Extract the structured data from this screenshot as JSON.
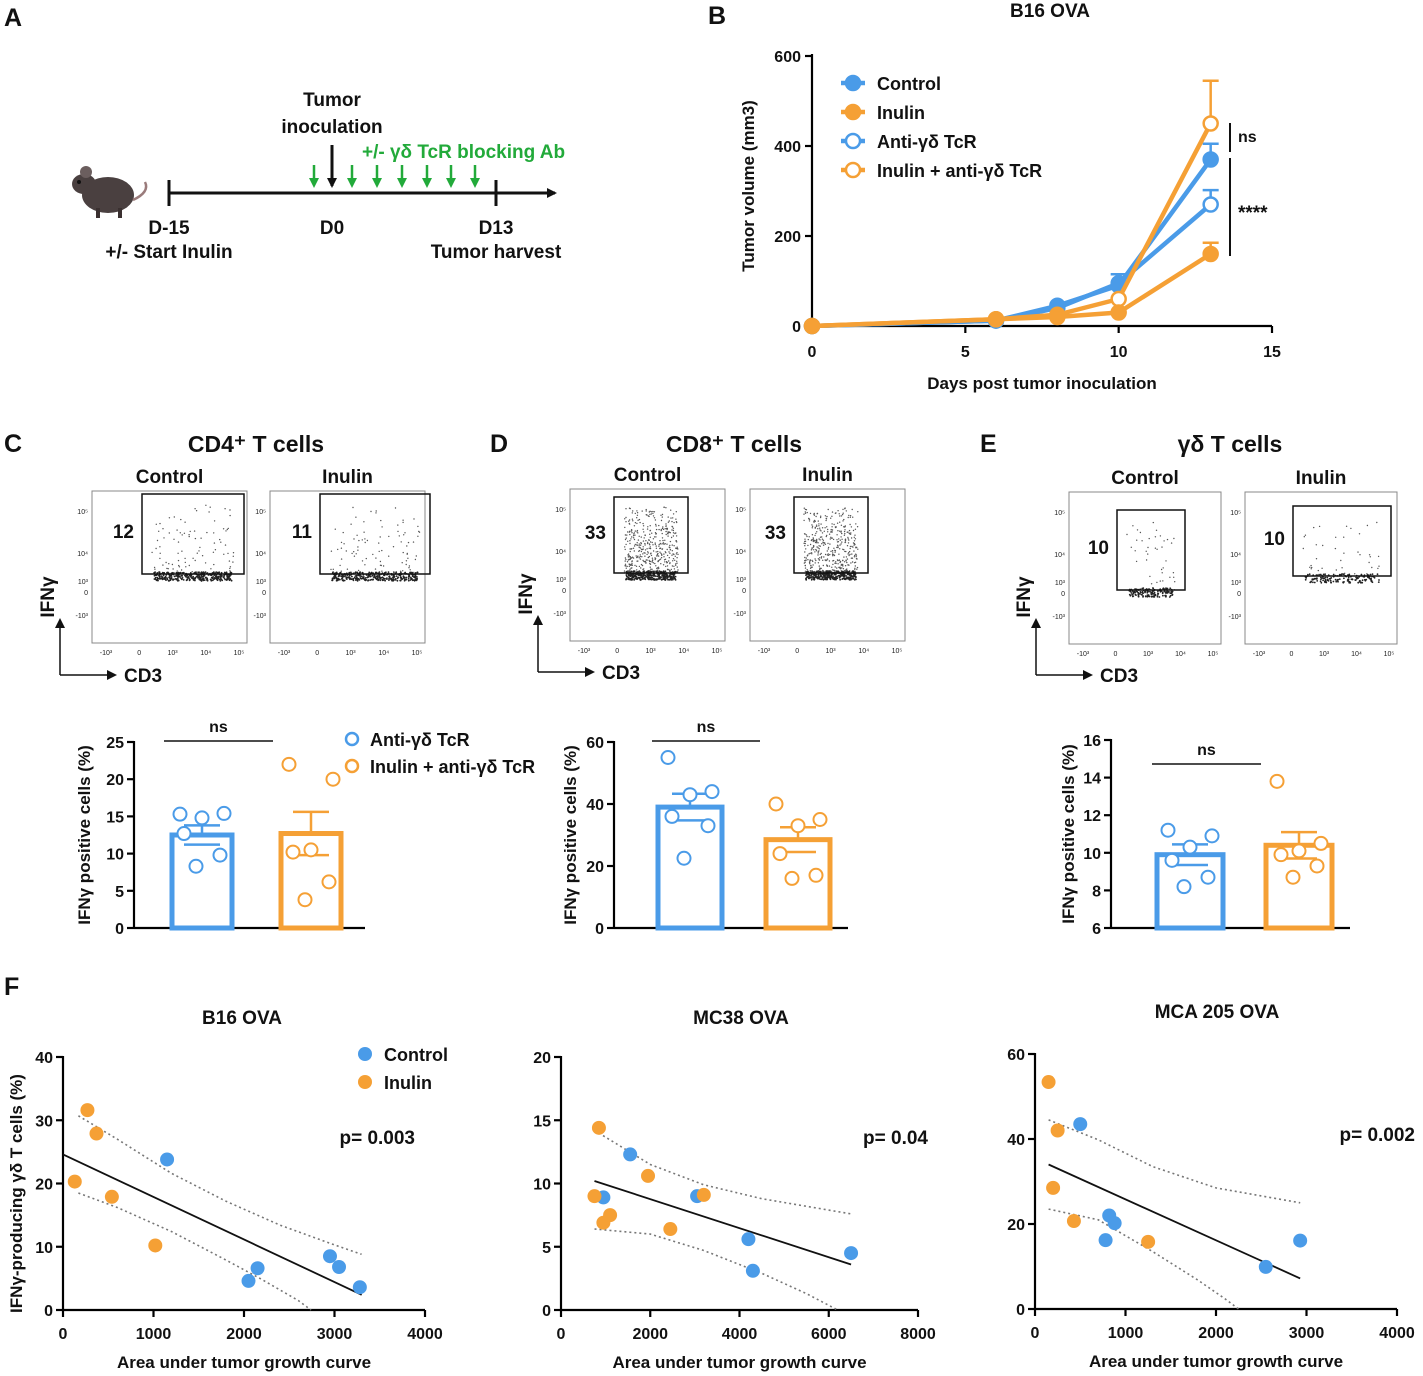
{
  "colors": {
    "control": "#4a9be8",
    "inulin": "#f5a035",
    "green": "#22aa3a",
    "black": "#111111"
  },
  "panel_labels": [
    "A",
    "B",
    "C",
    "D",
    "E",
    "F"
  ],
  "timeline": {
    "inoculation": [
      "Tumor",
      "inoculation"
    ],
    "blocking": "+/- γδ TcR blocking Ab",
    "d15": "D-15",
    "start_inulin": "+/- Start Inulin",
    "d0": "D0",
    "d13": "D13",
    "harvest": "Tumor harvest",
    "mouse_icon": "mouse-icon"
  },
  "chart_data": [
    {
      "id": "B",
      "type": "line",
      "title": "B16 OVA",
      "xlabel": "Days post tumor inoculation",
      "ylabel": "Tumor volume (mm3)",
      "xlim": [
        0,
        15
      ],
      "ylim": [
        0,
        600
      ],
      "xticks": [
        "0",
        "5",
        "10",
        "15"
      ],
      "yticks": [
        "0",
        "200",
        "400",
        "600"
      ],
      "x": [
        0,
        6,
        8,
        10,
        13
      ],
      "series": [
        {
          "name": "Control",
          "values": [
            0,
            12,
            45,
            90,
            370
          ],
          "err": [
            0,
            0,
            0,
            0,
            35
          ],
          "filled": true,
          "color": "#4a9be8"
        },
        {
          "name": "Inulin",
          "values": [
            0,
            15,
            20,
            30,
            160
          ],
          "err": [
            0,
            0,
            0,
            0,
            25
          ],
          "filled": true,
          "color": "#f5a035"
        },
        {
          "name": "Anti-γδ TcR",
          "values": [
            0,
            12,
            40,
            95,
            270
          ],
          "err": [
            0,
            0,
            0,
            20,
            32
          ],
          "filled": false,
          "color": "#4a9be8"
        },
        {
          "name": "Inulin + anti-γδ TcR",
          "values": [
            0,
            15,
            25,
            60,
            450
          ],
          "err": [
            0,
            0,
            0,
            0,
            95
          ],
          "filled": false,
          "color": "#f5a035"
        }
      ],
      "annotations": [
        "ns",
        "****"
      ]
    },
    {
      "id": "C-bar",
      "type": "bar",
      "title": "CD4⁺ T cells",
      "ylabel": "IFNγ positive cells (%)",
      "ylim": [
        0,
        25
      ],
      "yticks": [
        "0",
        "5",
        "10",
        "15",
        "20",
        "25"
      ],
      "categories": [
        "Anti-γδ TcR",
        "Inulin + anti-γδ TcR"
      ],
      "values": [
        12.5,
        12.7
      ],
      "err": [
        1.3,
        2.9
      ],
      "points": [
        [
          15.3,
          15.4,
          14.8,
          12.7,
          9.8,
          8.3
        ],
        [
          22,
          20,
          10.5,
          10.2,
          6.2,
          3.8
        ]
      ],
      "annotation": "ns",
      "legend": [
        "Anti-γδ TcR",
        "Inulin + anti-γδ TcR"
      ]
    },
    {
      "id": "D-bar",
      "type": "bar",
      "title": "CD8⁺ T cells",
      "ylabel": "IFNγ positive cells (%)",
      "ylim": [
        0,
        60
      ],
      "yticks": [
        "0",
        "20",
        "40",
        "60"
      ],
      "categories": [
        "Anti-γδ TcR",
        "Inulin + anti-γδ TcR"
      ],
      "values": [
        39,
        28.5
      ],
      "err": [
        4.3,
        4
      ],
      "points": [
        [
          55,
          44,
          43,
          36,
          33,
          22.5
        ],
        [
          40,
          35,
          33,
          24,
          17,
          16
        ]
      ],
      "annotation": "ns"
    },
    {
      "id": "E-bar",
      "type": "bar",
      "title": "γδ T cells",
      "ylabel": "IFNγ positive cells (%)",
      "ylim": [
        6,
        16
      ],
      "yticks": [
        "6",
        "8",
        "10",
        "12",
        "14",
        "16"
      ],
      "categories": [
        "Anti-γδ TcR",
        "Inulin + anti-γδ TcR"
      ],
      "values": [
        9.9,
        10.4
      ],
      "err": [
        0.55,
        0.7
      ],
      "points": [
        [
          11.2,
          10.9,
          10.3,
          9.6,
          8.7,
          8.2
        ],
        [
          13.8,
          10.5,
          10.1,
          9.9,
          9.3,
          8.7
        ]
      ],
      "annotation": "ns"
    },
    {
      "id": "F1",
      "type": "scatter",
      "title": "B16 OVA",
      "xlabel": "Area under tumor growth curve",
      "ylabel": "IFNγ-producing γδ T cells (%)",
      "xlim": [
        0,
        4000
      ],
      "ylim": [
        0,
        40
      ],
      "xticks": [
        "0",
        "1000",
        "2000",
        "3000",
        "4000"
      ],
      "yticks": [
        "0",
        "10",
        "20",
        "30",
        "40"
      ],
      "series": [
        {
          "name": "Control",
          "x": [
            1150,
            2050,
            2150,
            2950,
            3050,
            3280
          ],
          "y": [
            23.8,
            4.6,
            6.6,
            8.5,
            6.8,
            3.6
          ]
        },
        {
          "name": "Inulin",
          "x": [
            130,
            270,
            370,
            540,
            1020
          ],
          "y": [
            20.3,
            31.6,
            27.9,
            17.9,
            10.2
          ]
        }
      ],
      "fit": {
        "x": [
          0,
          3300
        ],
        "y": [
          24.6,
          2.4
        ]
      },
      "ci_upper": {
        "x": [
          170,
          600,
          1200,
          1800,
          2400,
          3000,
          3300
        ],
        "y": [
          30.7,
          27,
          21.6,
          17.2,
          13.4,
          10.3,
          8.8
        ]
      },
      "ci_lower": {
        "x": [
          170,
          600,
          1200,
          1800,
          2200,
          2600,
          2740
        ],
        "y": [
          18.5,
          16.2,
          12.4,
          7.9,
          4.8,
          1.5,
          0
        ]
      },
      "p": "p= 0.003",
      "legend": [
        "Control",
        "Inulin"
      ]
    },
    {
      "id": "F2",
      "type": "scatter",
      "title": "MC38 OVA",
      "xlabel": "Area under tumor growth curve",
      "xlim": [
        0,
        8000
      ],
      "ylim": [
        0,
        20
      ],
      "xticks": [
        "0",
        "2000",
        "4000",
        "6000",
        "8000"
      ],
      "yticks": [
        "0",
        "5",
        "10",
        "15",
        "20"
      ],
      "series": [
        {
          "name": "Control",
          "x": [
            950,
            1550,
            3050,
            4200,
            4300,
            6500
          ],
          "y": [
            8.9,
            12.3,
            9.0,
            5.6,
            3.1,
            4.5
          ]
        },
        {
          "name": "Inulin",
          "x": [
            750,
            850,
            950,
            1100,
            1950,
            2450,
            3200
          ],
          "y": [
            9.0,
            14.4,
            6.9,
            7.5,
            10.6,
            6.4,
            9.1
          ]
        }
      ],
      "fit": {
        "x": [
          750,
          6500
        ],
        "y": [
          10.2,
          3.6
        ]
      },
      "ci_upper": {
        "x": [
          750,
          2000,
          3200,
          4500,
          6500
        ],
        "y": [
          14.2,
          11.5,
          9.9,
          8.8,
          7.6
        ]
      },
      "ci_lower": {
        "x": [
          750,
          2000,
          3200,
          4500,
          5500,
          6200
        ],
        "y": [
          6.4,
          6.0,
          4.7,
          2.9,
          1.3,
          0
        ]
      },
      "p": "p= 0.04"
    },
    {
      "id": "F3",
      "type": "scatter",
      "title": "MCA 205 OVA",
      "xlabel": "Area under tumor growth curve",
      "xlim": [
        0,
        4000
      ],
      "ylim": [
        0,
        60
      ],
      "xticks": [
        "0",
        "1000",
        "2000",
        "3000",
        "4000"
      ],
      "yticks": [
        "0",
        "20",
        "40",
        "60"
      ],
      "series": [
        {
          "name": "Control",
          "x": [
            500,
            780,
            820,
            880,
            2550,
            2930
          ],
          "y": [
            43.5,
            16.2,
            22.0,
            20.2,
            9.9,
            16.1
          ]
        },
        {
          "name": "Inulin",
          "x": [
            150,
            200,
            250,
            430,
            1250
          ],
          "y": [
            53.4,
            28.5,
            42.0,
            20.7,
            15.8
          ]
        }
      ],
      "fit": {
        "x": [
          150,
          2930
        ],
        "y": [
          34.0,
          7.2
        ]
      },
      "ci_upper": {
        "x": [
          150,
          700,
          1300,
          2000,
          2930
        ],
        "y": [
          44.5,
          39.8,
          33.5,
          28.5,
          25.0
        ]
      },
      "ci_lower": {
        "x": [
          150,
          700,
          1300,
          1800,
          2100,
          2250
        ],
        "y": [
          23.5,
          21.0,
          13.5,
          6.8,
          2.4,
          0
        ]
      },
      "p": "p= 0.002"
    }
  ],
  "flow": {
    "C": {
      "title": "CD4⁺ T cells",
      "left_label": "Control",
      "right_label": "Inulin",
      "left_value": "12",
      "right_value": "11",
      "x_axis": "CD3",
      "y_axis": "IFNγ"
    },
    "D": {
      "title": "CD8⁺ T cells",
      "left_label": "Control",
      "right_label": "Inulin",
      "left_value": "33",
      "right_value": "33",
      "x_axis": "CD3",
      "y_axis": "IFNγ"
    },
    "E": {
      "title": "γδ T cells",
      "left_label": "Control",
      "right_label": "Inulin",
      "left_value": "10",
      "right_value": "10",
      "x_axis": "CD3",
      "y_axis": "IFNγ"
    }
  },
  "flow_ticks": {
    "y": [
      "10⁵",
      "10⁴",
      "10³",
      "0",
      "-10³"
    ],
    "x": [
      "-10³",
      "0",
      "10³",
      "10⁴",
      "10⁵"
    ]
  }
}
